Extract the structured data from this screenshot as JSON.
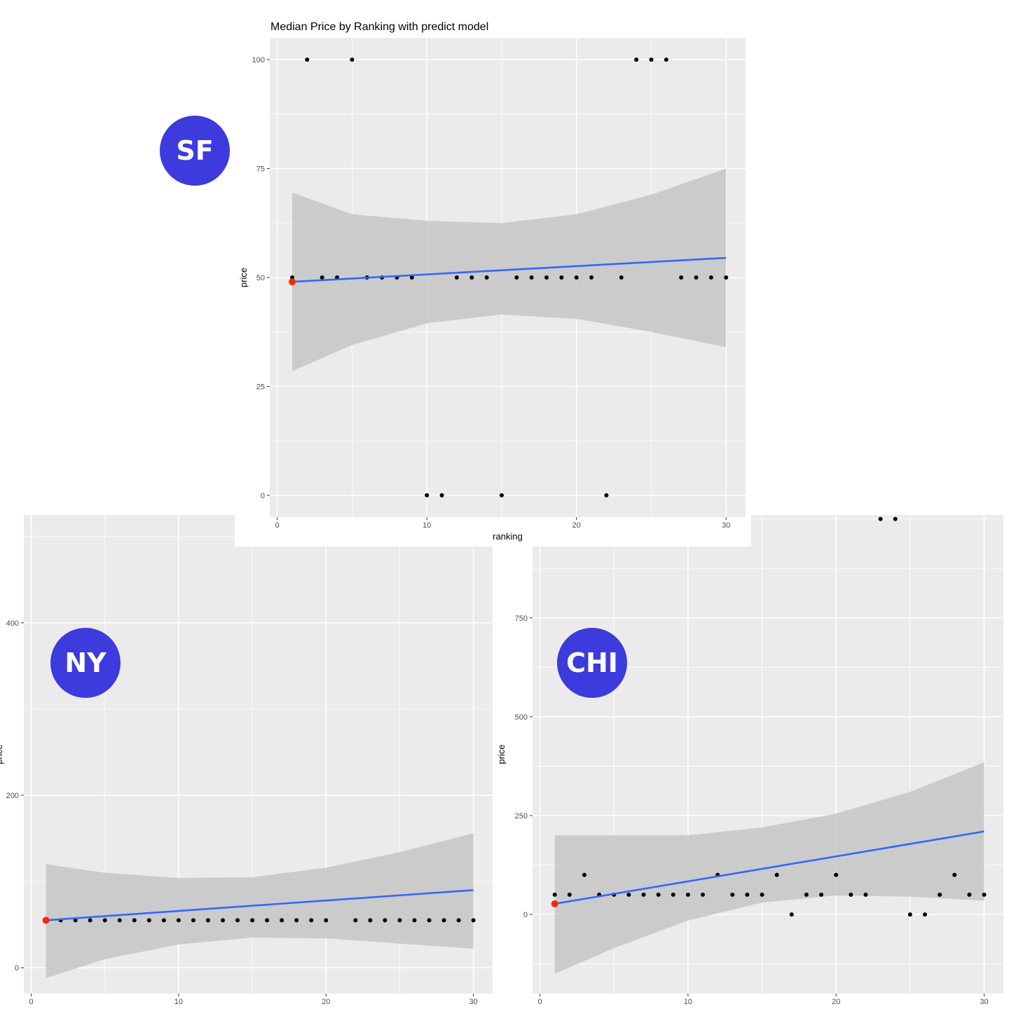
{
  "badge_color": "#3d3ade",
  "badges": [
    {
      "label": "SF"
    },
    {
      "label": "NY"
    },
    {
      "label": "CHI"
    }
  ],
  "colors": {
    "panel_bg": "#ebebeb",
    "grid": "#ffffff",
    "point": "#000000",
    "highlight_point": "#ff2600",
    "fit_line": "#3366ff",
    "band": "#c6c6c6"
  },
  "chart_data": [
    {
      "type": "scatter",
      "title": "Median Price by Ranking with predict model",
      "xlabel": "ranking",
      "ylabel": "price",
      "xlim": [
        -0.5,
        31.3
      ],
      "ylim": [
        -5,
        105
      ],
      "xticks": [
        0,
        10,
        20,
        30
      ],
      "yticks": [
        0,
        25,
        50,
        75,
        100
      ],
      "grid": true,
      "points": [
        {
          "x": 1,
          "y": 50
        },
        {
          "x": 2,
          "y": 100
        },
        {
          "x": 3,
          "y": 50
        },
        {
          "x": 4,
          "y": 50
        },
        {
          "x": 5,
          "y": 100
        },
        {
          "x": 6,
          "y": 50
        },
        {
          "x": 7,
          "y": 50
        },
        {
          "x": 8,
          "y": 50
        },
        {
          "x": 9,
          "y": 50
        },
        {
          "x": 10,
          "y": 0
        },
        {
          "x": 11,
          "y": 0
        },
        {
          "x": 12,
          "y": 50
        },
        {
          "x": 13,
          "y": 50
        },
        {
          "x": 14,
          "y": 50
        },
        {
          "x": 15,
          "y": 0
        },
        {
          "x": 16,
          "y": 50
        },
        {
          "x": 17,
          "y": 50
        },
        {
          "x": 18,
          "y": 50
        },
        {
          "x": 19,
          "y": 50
        },
        {
          "x": 20,
          "y": 50
        },
        {
          "x": 21,
          "y": 50
        },
        {
          "x": 22,
          "y": 0
        },
        {
          "x": 23,
          "y": 50
        },
        {
          "x": 24,
          "y": 100
        },
        {
          "x": 25,
          "y": 100
        },
        {
          "x": 26,
          "y": 100
        },
        {
          "x": 27,
          "y": 50
        },
        {
          "x": 28,
          "y": 50
        },
        {
          "x": 29,
          "y": 50
        },
        {
          "x": 30,
          "y": 50
        }
      ],
      "highlight": {
        "x": 1,
        "y": 49
      },
      "fit": {
        "x": [
          1,
          30
        ],
        "y": [
          49,
          54.5
        ]
      },
      "band": {
        "x": [
          1,
          5,
          10,
          15,
          20,
          25,
          30
        ],
        "lower": [
          28.5,
          34.5,
          39.5,
          41.5,
          40.5,
          37.5,
          34
        ],
        "upper": [
          69.5,
          64.5,
          63,
          62.5,
          64.5,
          69,
          75
        ]
      }
    },
    {
      "type": "scatter",
      "title": "",
      "xlabel": "",
      "ylabel": "price",
      "xlim": [
        -0.5,
        31.3
      ],
      "ylim": [
        -30,
        525
      ],
      "xticks": [
        0,
        10,
        20,
        30
      ],
      "yticks": [
        0,
        200,
        400
      ],
      "grid": true,
      "points": [
        {
          "x": 2,
          "y": 55
        },
        {
          "x": 3,
          "y": 55
        },
        {
          "x": 4,
          "y": 55
        },
        {
          "x": 5,
          "y": 55
        },
        {
          "x": 6,
          "y": 55
        },
        {
          "x": 7,
          "y": 55
        },
        {
          "x": 8,
          "y": 55
        },
        {
          "x": 9,
          "y": 55
        },
        {
          "x": 10,
          "y": 55
        },
        {
          "x": 11,
          "y": 55
        },
        {
          "x": 12,
          "y": 55
        },
        {
          "x": 13,
          "y": 55
        },
        {
          "x": 14,
          "y": 55
        },
        {
          "x": 15,
          "y": 55
        },
        {
          "x": 16,
          "y": 55
        },
        {
          "x": 17,
          "y": 55
        },
        {
          "x": 18,
          "y": 55
        },
        {
          "x": 19,
          "y": 55
        },
        {
          "x": 20,
          "y": 55
        },
        {
          "x": 22,
          "y": 55
        },
        {
          "x": 23,
          "y": 55
        },
        {
          "x": 24,
          "y": 55
        },
        {
          "x": 25,
          "y": 55
        },
        {
          "x": 26,
          "y": 55
        },
        {
          "x": 27,
          "y": 55
        },
        {
          "x": 28,
          "y": 55
        },
        {
          "x": 29,
          "y": 55
        },
        {
          "x": 30,
          "y": 55
        }
      ],
      "highlight": {
        "x": 1,
        "y": 55
      },
      "fit": {
        "x": [
          1,
          30
        ],
        "y": [
          55,
          90
        ]
      },
      "band": {
        "x": [
          1,
          5,
          10,
          15,
          20,
          25,
          30
        ],
        "lower": [
          -12,
          10,
          27,
          35,
          34,
          28,
          22
        ],
        "upper": [
          120,
          110,
          104,
          105,
          116,
          134,
          156
        ]
      }
    },
    {
      "type": "scatter",
      "title": "",
      "xlabel": "",
      "ylabel": "price",
      "xlim": [
        -0.5,
        31.3
      ],
      "ylim": [
        -200,
        1010
      ],
      "xticks": [
        0,
        10,
        20,
        30
      ],
      "yticks": [
        0,
        250,
        500,
        750
      ],
      "grid": true,
      "points": [
        {
          "x": 1,
          "y": 50
        },
        {
          "x": 2,
          "y": 50
        },
        {
          "x": 3,
          "y": 100
        },
        {
          "x": 4,
          "y": 50
        },
        {
          "x": 5,
          "y": 50
        },
        {
          "x": 6,
          "y": 50
        },
        {
          "x": 7,
          "y": 50
        },
        {
          "x": 8,
          "y": 50
        },
        {
          "x": 9,
          "y": 50
        },
        {
          "x": 10,
          "y": 50
        },
        {
          "x": 11,
          "y": 50
        },
        {
          "x": 12,
          "y": 100
        },
        {
          "x": 13,
          "y": 50
        },
        {
          "x": 14,
          "y": 50
        },
        {
          "x": 15,
          "y": 50
        },
        {
          "x": 16,
          "y": 100
        },
        {
          "x": 17,
          "y": 0
        },
        {
          "x": 18,
          "y": 50
        },
        {
          "x": 19,
          "y": 50
        },
        {
          "x": 20,
          "y": 100
        },
        {
          "x": 21,
          "y": 50
        },
        {
          "x": 22,
          "y": 50
        },
        {
          "x": 23,
          "y": 1000
        },
        {
          "x": 24,
          "y": 1000
        },
        {
          "x": 25,
          "y": 0
        },
        {
          "x": 26,
          "y": 0
        },
        {
          "x": 27,
          "y": 50
        },
        {
          "x": 28,
          "y": 100
        },
        {
          "x": 29,
          "y": 50
        },
        {
          "x": 30,
          "y": 50
        }
      ],
      "highlight": {
        "x": 1,
        "y": 27
      },
      "fit": {
        "x": [
          1,
          30
        ],
        "y": [
          27,
          210
        ]
      },
      "band": {
        "x": [
          1,
          5,
          10,
          15,
          20,
          25,
          30
        ],
        "lower": [
          -150,
          -85,
          -15,
          30,
          48,
          45,
          35
        ],
        "upper": [
          200,
          200,
          200,
          220,
          255,
          310,
          385
        ]
      }
    }
  ]
}
